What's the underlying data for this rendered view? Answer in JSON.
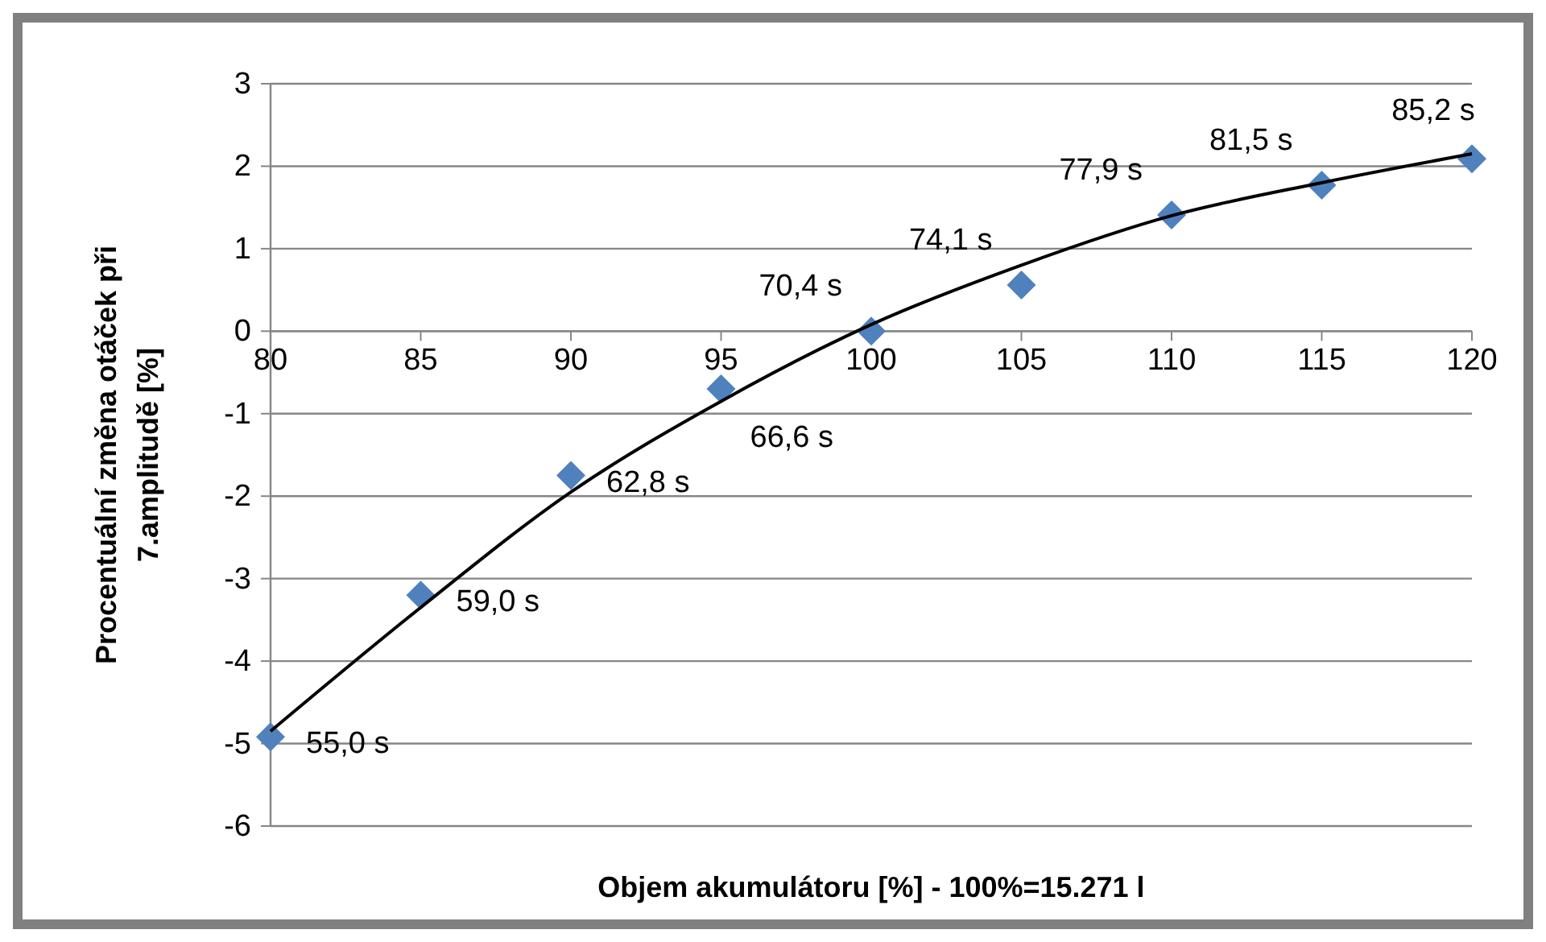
{
  "chart_data": {
    "type": "scatter",
    "xlabel": "Objem akumulátoru [%] - 100%=15.271 l",
    "ylabel": "Procentuální změna otáček při 7.amplitudě [%]",
    "xlim": [
      80,
      120
    ],
    "xticks": [
      80,
      85,
      90,
      95,
      100,
      105,
      110,
      115,
      120
    ],
    "ylim": [
      -6,
      3
    ],
    "yticks": [
      -6,
      -5,
      -4,
      -3,
      -2,
      -1,
      0,
      1,
      2,
      3
    ],
    "grid": "y",
    "series": [
      {
        "type": "scatter",
        "color": "#4f81bd",
        "marker": "diamond",
        "x": [
          80,
          85,
          90,
          95,
          100,
          105,
          110,
          115,
          120
        ],
        "values": [
          -4.92,
          -3.2,
          -1.75,
          -0.7,
          0,
          0.56,
          1.41,
          1.77,
          2.09
        ]
      },
      {
        "type": "line",
        "color": "#000000",
        "marker": "none",
        "line_style": "solid",
        "x": [
          80,
          85,
          90,
          95,
          100,
          105,
          110,
          115,
          120
        ],
        "values": [
          -4.85,
          -3.35,
          -1.95,
          -0.85,
          0.08,
          0.8,
          1.4,
          1.8,
          2.15
        ]
      }
    ],
    "annotations": [
      {
        "text": "55,0 s",
        "x": 80,
        "y": -4.92
      },
      {
        "text": "59,0 s",
        "x": 85,
        "y": -3.2
      },
      {
        "text": "62,8 s",
        "x": 90,
        "y": -1.75
      },
      {
        "text": "66,6 s",
        "x": 95,
        "y": -0.7
      },
      {
        "text": "70,4 s",
        "x": 100,
        "y": 0
      },
      {
        "text": "74,1 s",
        "x": 105,
        "y": 0.56
      },
      {
        "text": "77,9 s",
        "x": 110,
        "y": 1.41
      },
      {
        "text": "81,5 s",
        "x": 115,
        "y": 1.77
      },
      {
        "text": "85,2 s",
        "x": 120,
        "y": 2.09
      }
    ]
  }
}
